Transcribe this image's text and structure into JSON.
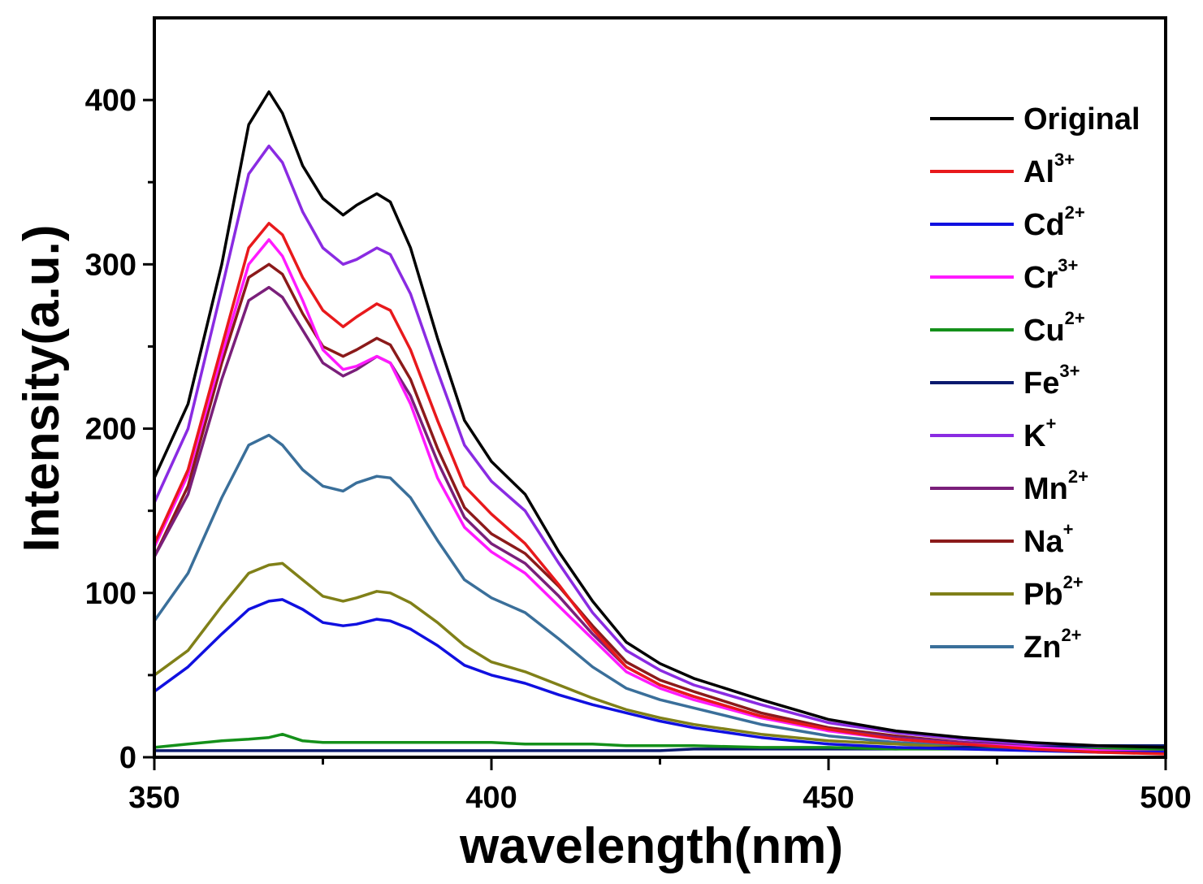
{
  "chart_data": {
    "type": "line",
    "xlabel": "wavelength(nm)",
    "ylabel": "Intensity(a.u.)",
    "xlim": [
      350,
      500
    ],
    "ylim": [
      0,
      450
    ],
    "x_ticks": [
      350,
      400,
      450,
      500
    ],
    "x_tick_labels": [
      "350",
      "400",
      "450",
      "500"
    ],
    "y_ticks": [
      0,
      100,
      200,
      300,
      400
    ],
    "y_tick_labels": [
      "0",
      "100",
      "200",
      "300",
      "400"
    ],
    "legend_position": "top-right",
    "grid": false,
    "x": [
      350,
      355,
      360,
      364,
      367,
      369,
      372,
      375,
      378,
      380,
      383,
      385,
      388,
      392,
      396,
      400,
      405,
      410,
      415,
      420,
      425,
      430,
      440,
      450,
      460,
      470,
      480,
      490,
      500
    ],
    "series": [
      {
        "name": "Original",
        "base": "Original",
        "sup": "",
        "color": "#000000",
        "values": [
          170,
          215,
          300,
          385,
          405,
          392,
          360,
          340,
          330,
          336,
          343,
          338,
          310,
          255,
          205,
          180,
          160,
          125,
          95,
          70,
          57,
          48,
          35,
          23,
          16,
          12,
          9,
          7,
          6
        ]
      },
      {
        "name": "Al3+",
        "base": "Al",
        "sup": "3+",
        "color": "#e8191c",
        "values": [
          130,
          175,
          250,
          310,
          325,
          318,
          292,
          272,
          262,
          268,
          276,
          272,
          248,
          205,
          165,
          148,
          130,
          105,
          78,
          55,
          44,
          37,
          25,
          17,
          11,
          8,
          5,
          3,
          2
        ]
      },
      {
        "name": "Cd2+",
        "base": "Cd",
        "sup": "2+",
        "color": "#1010e0",
        "values": [
          40,
          55,
          75,
          90,
          95,
          96,
          90,
          82,
          80,
          81,
          84,
          83,
          78,
          68,
          56,
          50,
          45,
          38,
          32,
          27,
          22,
          18,
          12,
          8,
          6,
          5,
          4,
          3,
          3
        ]
      },
      {
        "name": "Cr3+",
        "base": "Cr",
        "sup": "3+",
        "color": "#ff1aff",
        "values": [
          128,
          172,
          245,
          300,
          315,
          305,
          278,
          248,
          236,
          238,
          244,
          240,
          215,
          170,
          140,
          125,
          112,
          92,
          72,
          52,
          42,
          35,
          24,
          16,
          11,
          8,
          6,
          4,
          3
        ]
      },
      {
        "name": "Cu2+",
        "base": "Cu",
        "sup": "2+",
        "color": "#14901a",
        "values": [
          6,
          8,
          10,
          11,
          12,
          14,
          10,
          9,
          9,
          9,
          9,
          9,
          9,
          9,
          9,
          9,
          8,
          8,
          8,
          7,
          7,
          7,
          6,
          6,
          5,
          5,
          5,
          5,
          5
        ]
      },
      {
        "name": "Fe3+",
        "base": "Fe",
        "sup": "3+",
        "color": "#0a1a6e",
        "values": [
          4,
          4,
          4,
          4,
          4,
          4,
          4,
          4,
          4,
          4,
          4,
          4,
          4,
          4,
          4,
          4,
          4,
          4,
          4,
          4,
          4,
          5,
          5,
          5,
          5,
          6,
          6,
          7,
          7
        ]
      },
      {
        "name": "K+",
        "base": "K",
        "sup": "+",
        "color": "#8a2be2",
        "values": [
          155,
          200,
          285,
          355,
          372,
          362,
          332,
          310,
          300,
          303,
          310,
          306,
          282,
          235,
          190,
          168,
          150,
          118,
          88,
          65,
          53,
          44,
          32,
          21,
          15,
          11,
          8,
          6,
          5
        ]
      },
      {
        "name": "Mn2+",
        "base": "Mn",
        "sup": "2+",
        "color": "#7a1f7a",
        "values": [
          122,
          160,
          230,
          278,
          286,
          280,
          260,
          240,
          232,
          236,
          244,
          240,
          220,
          180,
          146,
          130,
          118,
          98,
          75,
          55,
          44,
          37,
          25,
          17,
          12,
          9,
          7,
          5,
          4
        ]
      },
      {
        "name": "Na+",
        "base": "Na",
        "sup": "+",
        "color": "#8b1a1a",
        "values": [
          122,
          165,
          240,
          292,
          300,
          294,
          270,
          250,
          244,
          248,
          255,
          251,
          230,
          188,
          152,
          136,
          124,
          104,
          80,
          58,
          47,
          40,
          27,
          18,
          13,
          9,
          7,
          5,
          4
        ]
      },
      {
        "name": "Pb2+",
        "base": "Pb",
        "sup": "2+",
        "color": "#808018",
        "values": [
          50,
          65,
          92,
          112,
          117,
          118,
          108,
          98,
          95,
          97,
          101,
          100,
          94,
          82,
          68,
          58,
          52,
          44,
          36,
          29,
          24,
          20,
          14,
          10,
          8,
          6,
          5,
          4,
          4
        ]
      },
      {
        "name": "Zn2+",
        "base": "Zn",
        "sup": "2+",
        "color": "#3a6f9a",
        "values": [
          83,
          112,
          158,
          190,
          196,
          190,
          175,
          165,
          162,
          167,
          171,
          170,
          158,
          132,
          108,
          97,
          88,
          72,
          55,
          42,
          35,
          30,
          20,
          13,
          9,
          7,
          5,
          4,
          4
        ]
      }
    ]
  }
}
